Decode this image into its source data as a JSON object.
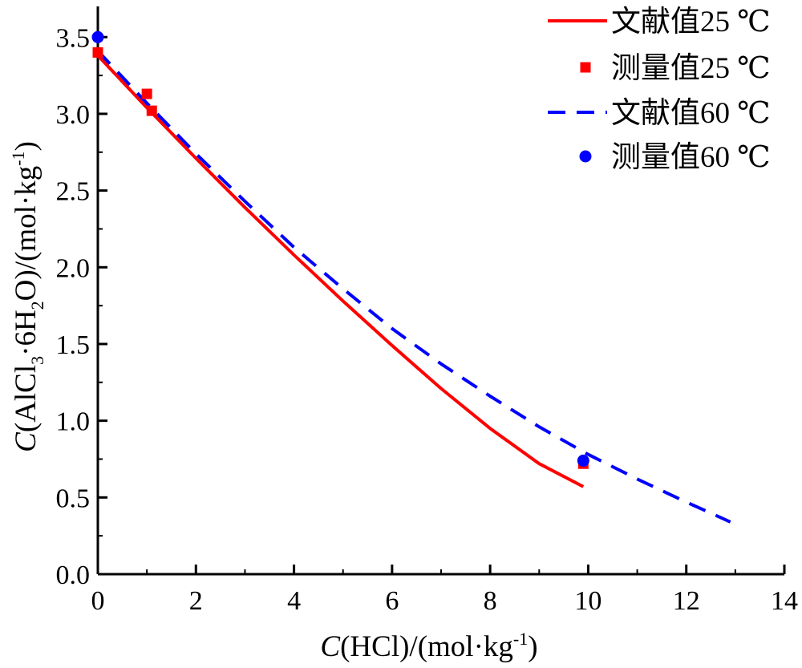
{
  "chart_data": {
    "type": "line",
    "x_axis": {
      "label_prefix": "C",
      "label_rest": "(HCl)/(mol·kg",
      "label_sup": "-1",
      "label_close": ")",
      "range": [
        0,
        14
      ],
      "ticks": [
        "0",
        "2",
        "4",
        "6",
        "8",
        "10",
        "12",
        "14"
      ]
    },
    "y_axis": {
      "label_prefix": "C",
      "label_part1": "(AlCl",
      "label_sub1": "3",
      "label_part2": "·6H",
      "label_sub2": "2",
      "label_part3": "O)/(mol·kg",
      "label_sup": "-1",
      "label_close": ")",
      "range": [
        0,
        3.7
      ],
      "ticks": [
        "0.0",
        "0.5",
        "1.0",
        "1.5",
        "2.0",
        "2.5",
        "3.0",
        "3.5"
      ]
    },
    "grid": false,
    "legend_position": "top-right",
    "series": [
      {
        "name": "文献值25 ℃",
        "kind": "line",
        "color": "#ff0000",
        "dash": "solid",
        "x": [
          0,
          1,
          2,
          3,
          4,
          5,
          6,
          7,
          8,
          9,
          9.9
        ],
        "y": [
          3.38,
          3.04,
          2.71,
          2.39,
          2.08,
          1.78,
          1.49,
          1.21,
          0.95,
          0.72,
          0.57
        ]
      },
      {
        "name": "测量值25 ℃",
        "kind": "marker",
        "marker": "square",
        "color": "#ff0000",
        "x": [
          0.0,
          1.0,
          1.1,
          9.9
        ],
        "y": [
          3.4,
          3.13,
          3.02,
          0.72
        ]
      },
      {
        "name": "文献值60 ℃",
        "kind": "line",
        "color": "#0000ff",
        "dash": "dashed",
        "x": [
          0,
          1,
          2,
          3,
          4,
          5,
          6,
          7,
          8,
          9,
          10,
          11,
          12,
          12.9
        ],
        "y": [
          3.41,
          3.07,
          2.74,
          2.43,
          2.13,
          1.86,
          1.6,
          1.37,
          1.16,
          0.96,
          0.78,
          0.62,
          0.47,
          0.34
        ]
      },
      {
        "name": "测量值60 ℃",
        "kind": "marker",
        "marker": "circle",
        "color": "#0000ff",
        "x": [
          0.0,
          9.9
        ],
        "y": [
          3.5,
          0.74
        ]
      }
    ]
  }
}
